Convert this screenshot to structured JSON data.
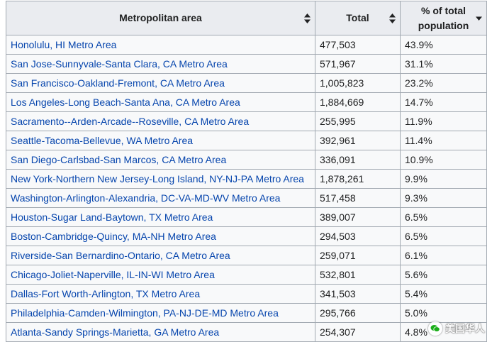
{
  "table": {
    "headers": {
      "area": "Metropolitan area",
      "total": "Total",
      "percent": "% of total population"
    },
    "rows": [
      {
        "area": "Honolulu, HI Metro Area",
        "total": "477,503",
        "percent": "43.9%"
      },
      {
        "area": "San Jose-Sunnyvale-Santa Clara, CA Metro Area",
        "total": "571,967",
        "percent": "31.1%"
      },
      {
        "area": "San Francisco-Oakland-Fremont, CA Metro Area",
        "total": "1,005,823",
        "percent": "23.2%"
      },
      {
        "area": "Los Angeles-Long Beach-Santa Ana, CA Metro Area",
        "total": "1,884,669",
        "percent": "14.7%"
      },
      {
        "area": "Sacramento--Arden-Arcade--Roseville, CA Metro Area",
        "total": "255,995",
        "percent": "11.9%"
      },
      {
        "area": "Seattle-Tacoma-Bellevue, WA Metro Area",
        "total": "392,961",
        "percent": "11.4%"
      },
      {
        "area": "San Diego-Carlsbad-San Marcos, CA Metro Area",
        "total": "336,091",
        "percent": "10.9%"
      },
      {
        "area": "New York-Northern New Jersey-Long Island, NY-NJ-PA Metro Area",
        "total": "1,878,261",
        "percent": "9.9%"
      },
      {
        "area": "Washington-Arlington-Alexandria, DC-VA-MD-WV Metro Area",
        "total": "517,458",
        "percent": "9.3%"
      },
      {
        "area": "Houston-Sugar Land-Baytown, TX Metro Area",
        "total": "389,007",
        "percent": "6.5%"
      },
      {
        "area": "Boston-Cambridge-Quincy, MA-NH Metro Area",
        "total": "294,503",
        "percent": "6.5%"
      },
      {
        "area": "Riverside-San Bernardino-Ontario, CA Metro Area",
        "total": "259,071",
        "percent": "6.1%"
      },
      {
        "area": "Chicago-Joliet-Naperville, IL-IN-WI Metro Area",
        "total": "532,801",
        "percent": "5.6%"
      },
      {
        "area": "Dallas-Fort Worth-Arlington, TX Metro Area",
        "total": "341,503",
        "percent": "5.4%"
      },
      {
        "area": "Philadelphia-Camden-Wilmington, PA-NJ-DE-MD Metro Area",
        "total": "295,766",
        "percent": "5.0%"
      },
      {
        "area": "Atlanta-Sandy Springs-Marietta, GA Metro Area",
        "total": "254,307",
        "percent": "4.8%"
      }
    ]
  },
  "watermark": {
    "text": "美国华人"
  },
  "colors": {
    "link": "#0645ad",
    "header_bg": "#eaecf0",
    "cell_bg": "#f8f9fa",
    "border": "#a2a9b1"
  },
  "icons": {
    "sort_both": "sort-both-icon",
    "sort_down": "sort-down-icon",
    "watermark_logo": "wechat-logo-icon"
  }
}
